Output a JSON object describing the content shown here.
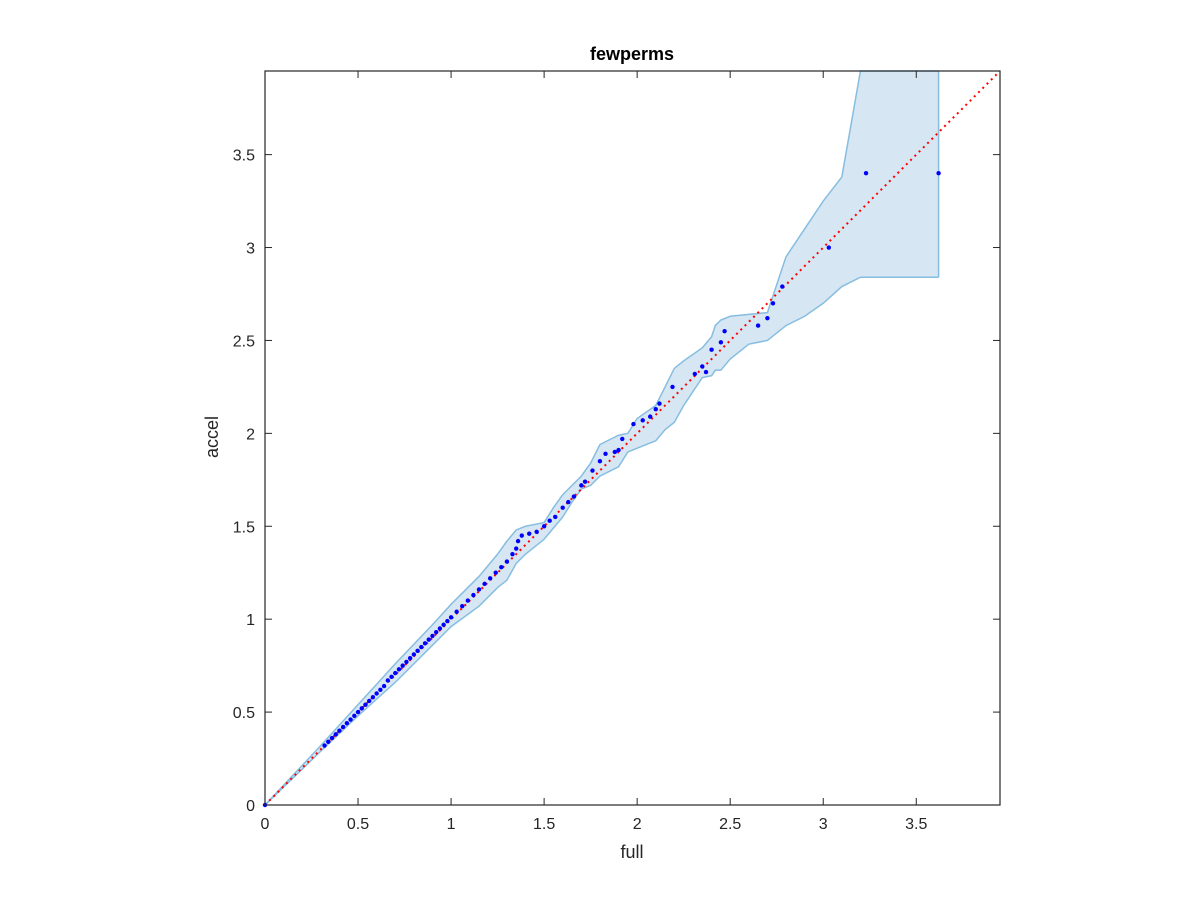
{
  "chart_data": {
    "type": "scatter",
    "title": "fewperms",
    "xlabel": "full",
    "ylabel": "accel",
    "xlim": [
      0,
      3.95
    ],
    "ylim": [
      0,
      3.95
    ],
    "xticks": [
      0,
      0.5,
      1,
      1.5,
      2,
      2.5,
      3,
      3.5
    ],
    "yticks": [
      0,
      0.5,
      1,
      1.5,
      2,
      2.5,
      3,
      3.5
    ],
    "xtick_labels": [
      "0",
      "0.5",
      "1",
      "1.5",
      "2",
      "2.5",
      "3",
      "3.5"
    ],
    "ytick_labels": [
      "0",
      "0.5",
      "1",
      "1.5",
      "2",
      "2.5",
      "3",
      "3.5"
    ],
    "grid": false,
    "box": true,
    "colors": {
      "points": "#0000ff",
      "identity_line": "#ff0000",
      "band_fill": "#d6e7f3",
      "band_edge": "#86bde0",
      "axis": "#262626"
    },
    "identity_line": {
      "x": [
        0,
        3.95
      ],
      "y": [
        0,
        3.95
      ],
      "style": "dotted"
    },
    "confidence_band": {
      "x": [
        0,
        0.3,
        0.5,
        0.7,
        0.9,
        1.0,
        1.15,
        1.25,
        1.3,
        1.35,
        1.4,
        1.5,
        1.55,
        1.6,
        1.65,
        1.7,
        1.75,
        1.8,
        1.9,
        1.95,
        2.0,
        2.1,
        2.15,
        2.2,
        2.25,
        2.35,
        2.4,
        2.42,
        2.45,
        2.5,
        2.6,
        2.7,
        2.8,
        2.9,
        3.0,
        3.1,
        3.2,
        3.4,
        3.62
      ],
      "upper": [
        0,
        0.32,
        0.54,
        0.76,
        0.97,
        1.08,
        1.23,
        1.35,
        1.42,
        1.48,
        1.5,
        1.52,
        1.6,
        1.67,
        1.72,
        1.77,
        1.84,
        1.94,
        1.99,
        2.0,
        2.08,
        2.15,
        2.25,
        2.35,
        2.39,
        2.46,
        2.52,
        2.58,
        2.61,
        2.63,
        2.64,
        2.65,
        2.95,
        3.1,
        3.25,
        3.38,
        3.95,
        3.95,
        3.95
      ],
      "lower": [
        0,
        0.29,
        0.48,
        0.66,
        0.86,
        0.96,
        1.07,
        1.17,
        1.21,
        1.3,
        1.35,
        1.43,
        1.49,
        1.55,
        1.63,
        1.7,
        1.72,
        1.77,
        1.82,
        1.9,
        1.92,
        1.96,
        2.02,
        2.06,
        2.15,
        2.3,
        2.31,
        2.34,
        2.34,
        2.4,
        2.48,
        2.5,
        2.58,
        2.63,
        2.7,
        2.79,
        2.84,
        2.84,
        2.84
      ]
    },
    "points": {
      "x": [
        0.0,
        0.32,
        0.34,
        0.36,
        0.38,
        0.4,
        0.42,
        0.44,
        0.46,
        0.48,
        0.5,
        0.52,
        0.54,
        0.56,
        0.58,
        0.6,
        0.62,
        0.64,
        0.66,
        0.68,
        0.7,
        0.72,
        0.74,
        0.76,
        0.78,
        0.8,
        0.82,
        0.84,
        0.86,
        0.88,
        0.9,
        0.92,
        0.94,
        0.96,
        0.98,
        1.0,
        1.03,
        1.06,
        1.09,
        1.12,
        1.15,
        1.18,
        1.21,
        1.24,
        1.27,
        1.3,
        1.33,
        1.35,
        1.36,
        1.38,
        1.42,
        1.46,
        1.5,
        1.53,
        1.56,
        1.6,
        1.63,
        1.66,
        1.7,
        1.72,
        1.76,
        1.8,
        1.83,
        1.88,
        1.9,
        1.92,
        1.98,
        2.03,
        2.07,
        2.1,
        2.12,
        2.19,
        2.31,
        2.35,
        2.37,
        2.4,
        2.45,
        2.47,
        2.65,
        2.7,
        2.73,
        2.78,
        3.03,
        3.23,
        3.62
      ],
      "y": [
        0.0,
        0.32,
        0.34,
        0.36,
        0.38,
        0.4,
        0.42,
        0.44,
        0.46,
        0.48,
        0.5,
        0.52,
        0.54,
        0.56,
        0.58,
        0.6,
        0.62,
        0.64,
        0.67,
        0.69,
        0.71,
        0.73,
        0.75,
        0.77,
        0.79,
        0.81,
        0.83,
        0.85,
        0.87,
        0.89,
        0.91,
        0.93,
        0.95,
        0.97,
        0.99,
        1.01,
        1.04,
        1.07,
        1.1,
        1.13,
        1.16,
        1.19,
        1.22,
        1.25,
        1.28,
        1.31,
        1.35,
        1.38,
        1.42,
        1.45,
        1.46,
        1.47,
        1.5,
        1.53,
        1.55,
        1.6,
        1.63,
        1.66,
        1.72,
        1.74,
        1.8,
        1.85,
        1.89,
        1.9,
        1.91,
        1.97,
        2.05,
        2.07,
        2.09,
        2.13,
        2.16,
        2.25,
        2.32,
        2.36,
        2.33,
        2.45,
        2.49,
        2.55,
        2.58,
        2.62,
        2.7,
        2.79,
        3.0,
        3.4,
        3.4
      ]
    }
  }
}
